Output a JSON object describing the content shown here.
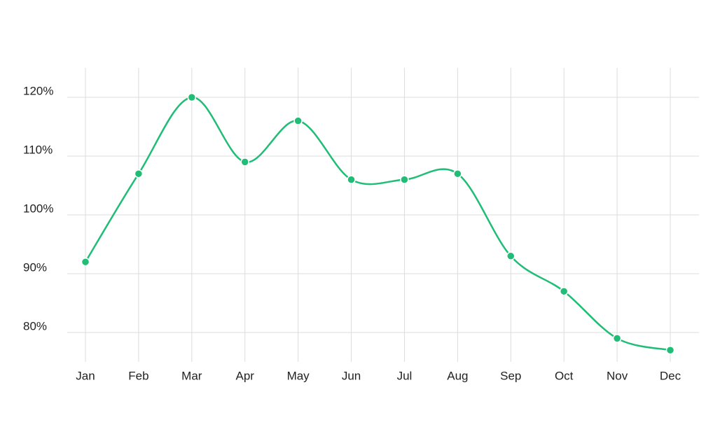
{
  "chart_data": {
    "type": "line",
    "categories": [
      "Jan",
      "Feb",
      "Mar",
      "Apr",
      "May",
      "Jun",
      "Jul",
      "Aug",
      "Sep",
      "Oct",
      "Nov",
      "Dec"
    ],
    "series": [
      {
        "color": "#1fbd75",
        "values": [
          92,
          107,
          120,
          109,
          116,
          106,
          106,
          107,
          93,
          87,
          79,
          77
        ]
      }
    ],
    "ylim": [
      75,
      125
    ],
    "yticks": [
      {
        "value": 80,
        "label": "80%"
      },
      {
        "value": 90,
        "label": "90%"
      },
      {
        "value": 100,
        "label": "100%"
      },
      {
        "value": 110,
        "label": "110%"
      },
      {
        "value": 120,
        "label": "120%"
      }
    ],
    "grid": true,
    "smooth": true
  }
}
